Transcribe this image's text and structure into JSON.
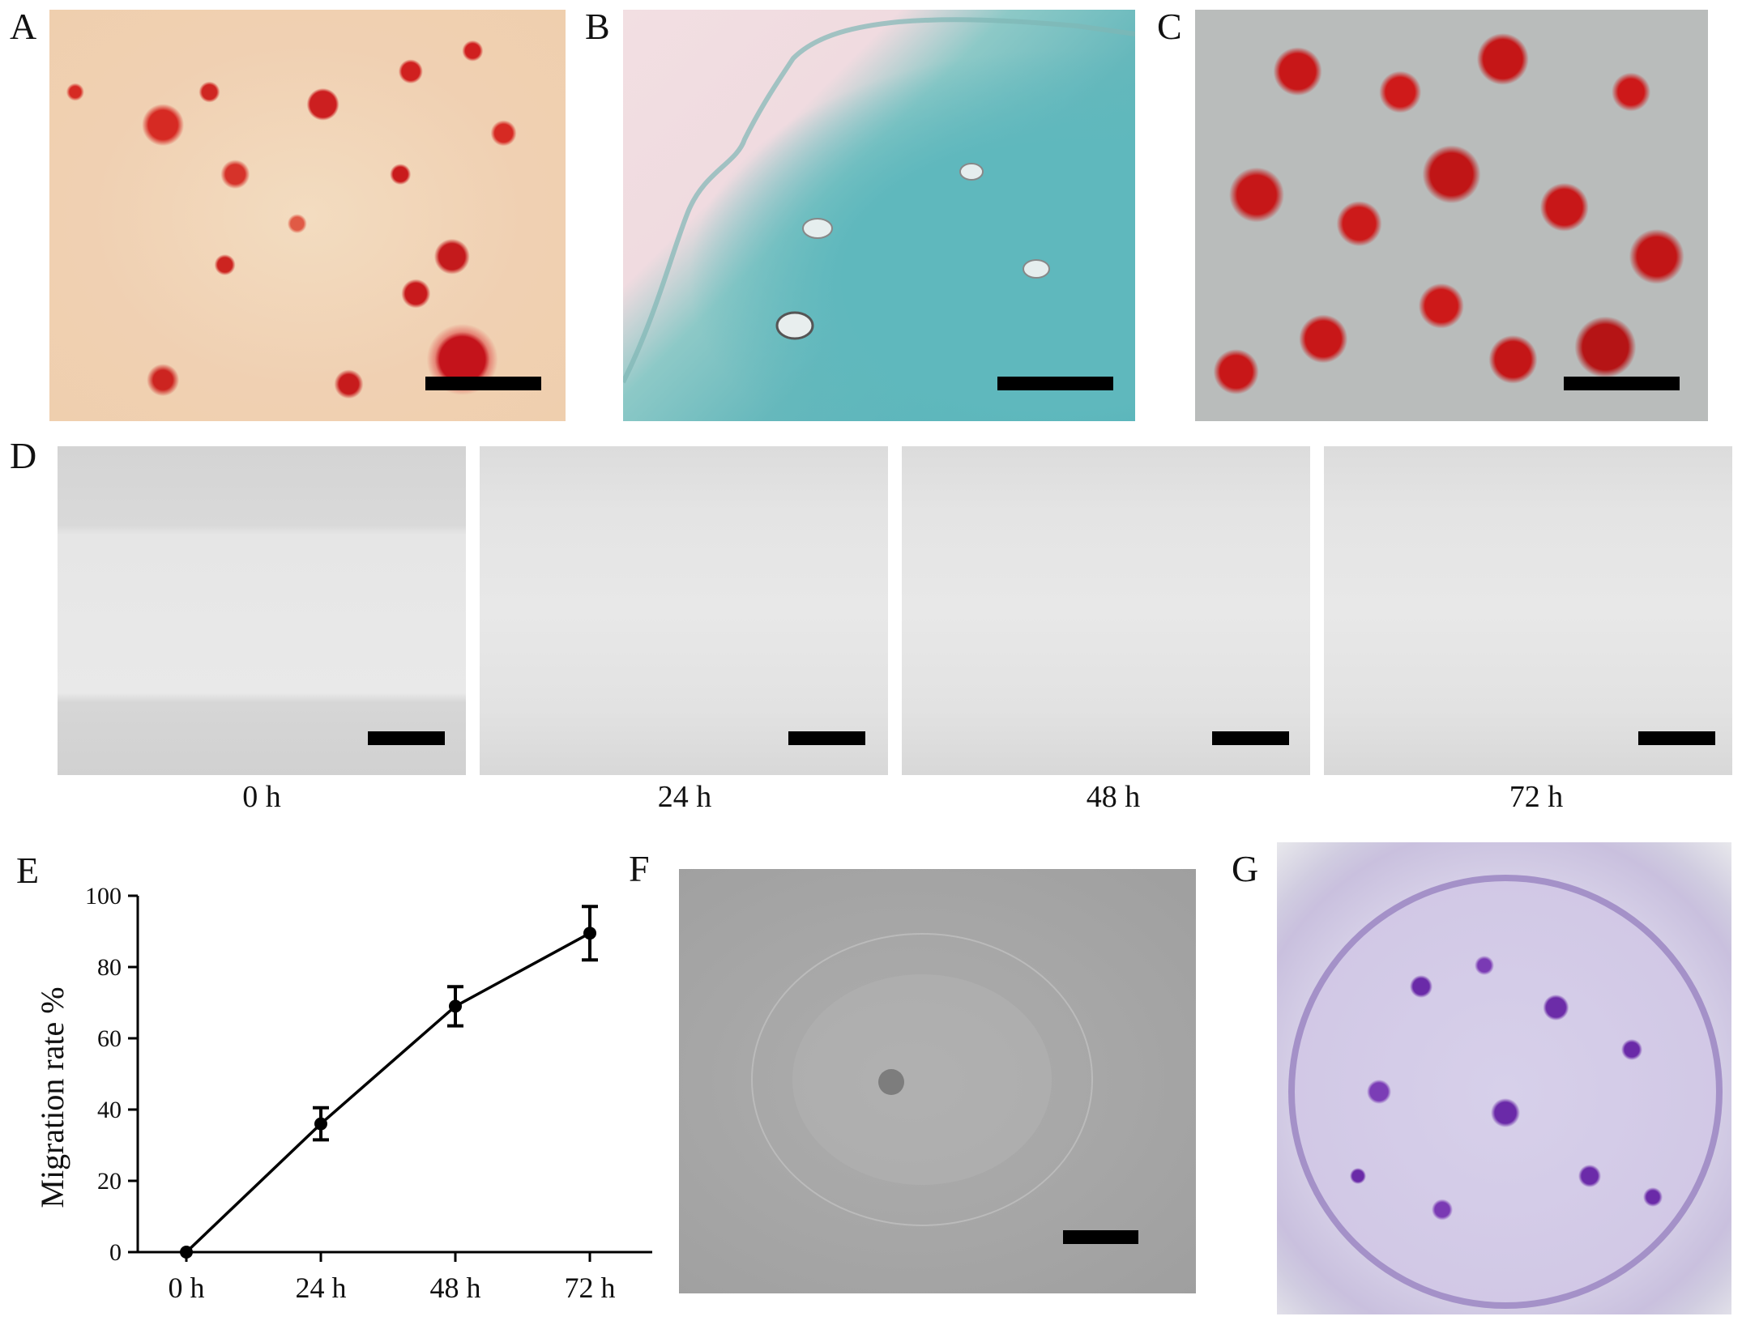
{
  "panel_labels": {
    "a": "A",
    "b": "B",
    "c": "C",
    "d": "D",
    "e": "E",
    "f": "F",
    "g": "G"
  },
  "panel_d": {
    "time_labels": [
      "0 h",
      "24 h",
      "48 h",
      "72 h"
    ]
  },
  "chart_data": {
    "type": "line",
    "title": "",
    "xlabel": "",
    "ylabel": "Migration rate %",
    "categories": [
      "0 h",
      "24 h",
      "48 h",
      "72 h"
    ],
    "series": [
      {
        "values": [
          0,
          36,
          69,
          89.5
        ],
        "error": [
          0,
          4.5,
          5.5,
          7.5
        ]
      }
    ],
    "ylim": [
      0,
      100
    ],
    "yticks": [
      0,
      20,
      40,
      60,
      80,
      100
    ],
    "yticks_labels": [
      "0",
      "20",
      "40",
      "60",
      "80",
      "100"
    ],
    "grid": false,
    "line_color": "#000000"
  }
}
